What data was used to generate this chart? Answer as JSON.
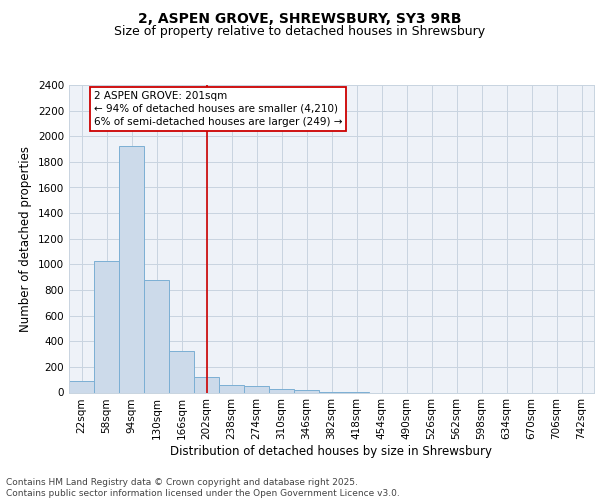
{
  "title_line1": "2, ASPEN GROVE, SHREWSBURY, SY3 9RB",
  "title_line2": "Size of property relative to detached houses in Shrewsbury",
  "xlabel": "Distribution of detached houses by size in Shrewsbury",
  "ylabel": "Number of detached properties",
  "categories": [
    "22sqm",
    "58sqm",
    "94sqm",
    "130sqm",
    "166sqm",
    "202sqm",
    "238sqm",
    "274sqm",
    "310sqm",
    "346sqm",
    "382sqm",
    "418sqm",
    "454sqm",
    "490sqm",
    "526sqm",
    "562sqm",
    "598sqm",
    "634sqm",
    "670sqm",
    "706sqm",
    "742sqm"
  ],
  "values": [
    90,
    1030,
    1920,
    880,
    325,
    120,
    55,
    48,
    30,
    20,
    5,
    5,
    0,
    0,
    0,
    0,
    0,
    0,
    0,
    0,
    0
  ],
  "bar_color": "#ccdaea",
  "bar_edge_color": "#7bafd4",
  "grid_color": "#c8d4e0",
  "bg_color": "#eef2f8",
  "annotation_text_line1": "2 ASPEN GROVE: 201sqm",
  "annotation_text_line2": "← 94% of detached houses are smaller (4,210)",
  "annotation_text_line3": "6% of semi-detached houses are larger (249) →",
  "annotation_box_color": "#ffffff",
  "annotation_box_edge_color": "#cc0000",
  "vline_color": "#cc0000",
  "vline_x_index": 5,
  "ylim": [
    0,
    2400
  ],
  "yticks": [
    0,
    200,
    400,
    600,
    800,
    1000,
    1200,
    1400,
    1600,
    1800,
    2000,
    2200,
    2400
  ],
  "footer_text": "Contains HM Land Registry data © Crown copyright and database right 2025.\nContains public sector information licensed under the Open Government Licence v3.0.",
  "title_fontsize": 10,
  "subtitle_fontsize": 9,
  "axis_label_fontsize": 8.5,
  "tick_fontsize": 7.5,
  "annotation_fontsize": 7.5,
  "footer_fontsize": 6.5
}
